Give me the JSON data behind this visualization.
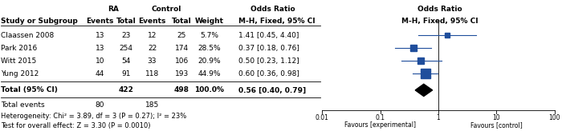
{
  "studies": [
    "Claassen 2008",
    "Park 2016",
    "Witt 2015",
    "Yung 2012"
  ],
  "ra_events": [
    13,
    13,
    10,
    44
  ],
  "ra_total": [
    23,
    254,
    54,
    91
  ],
  "ctrl_events": [
    12,
    22,
    33,
    118
  ],
  "ctrl_total": [
    25,
    174,
    106,
    193
  ],
  "weights": [
    "5.7%",
    "28.5%",
    "20.9%",
    "44.9%"
  ],
  "weight_vals": [
    5.7,
    28.5,
    20.9,
    44.9
  ],
  "or_labels": [
    "1.41 [0.45, 4.40]",
    "0.37 [0.18, 0.76]",
    "0.50 [0.23, 1.12]",
    "0.60 [0.36, 0.98]"
  ],
  "or_values": [
    1.41,
    0.37,
    0.5,
    0.6
  ],
  "ci_lower": [
    0.45,
    0.18,
    0.23,
    0.36
  ],
  "ci_upper": [
    4.4,
    0.76,
    1.12,
    0.98
  ],
  "total_or": 0.56,
  "total_ci_lower": 0.4,
  "total_ci_upper": 0.79,
  "total_or_label": "0.56 [0.40, 0.79]",
  "total_weight": "100.0%",
  "total_ra": 422,
  "total_ctrl": 498,
  "total_ra_events": 80,
  "total_ctrl_events": 185,
  "heterogeneity_text": "Heterogeneity: Chi² = 3.89, df = 3 (P = 0.27); I² = 23%",
  "overall_effect_text": "Test for overall effect: Z = 3.30 (P = 0.0010)",
  "col_header_ra": "RA",
  "col_header_ctrl": "Control",
  "col_header_or": "Odds Ratio",
  "col_header_or2": "Odds Ratio",
  "subrow_headers": [
    "Study or Subgroup",
    "Events",
    "Total",
    "Events",
    "Total",
    "Weight",
    "M-H, Fixed, 95% CI",
    "M-H, Fixed, 95% CI"
  ],
  "marker_color": "#1F4E9C",
  "axis_min": 0.01,
  "axis_max": 100,
  "axis_ticks": [
    0.01,
    0.1,
    1,
    10,
    100
  ],
  "tick_labels": [
    "0.01",
    "0.1",
    "1",
    "10",
    "100"
  ],
  "favours_experimental": "Favours [experimental]",
  "favours_control": "Favours [control]",
  "background_color": "#FFFFFF",
  "text_color": "#000000",
  "font_size": 6.5
}
